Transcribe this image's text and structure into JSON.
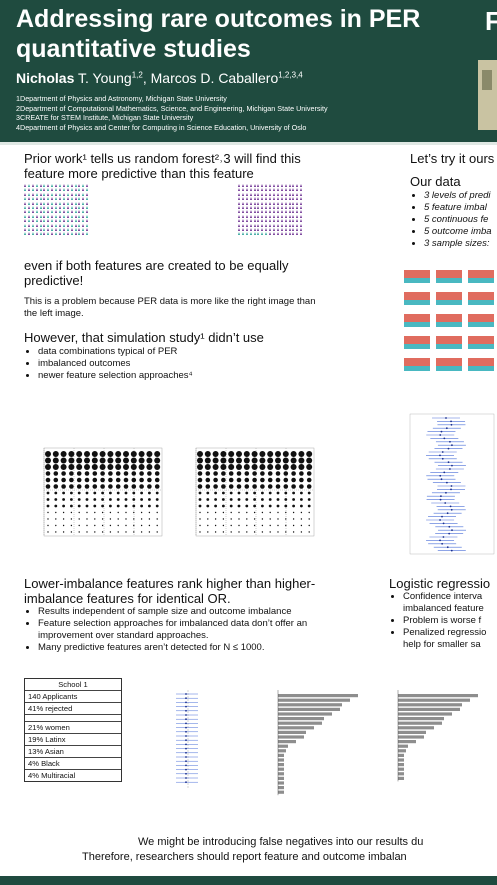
{
  "header": {
    "title": "Addressing rare outcomes in PER quantitative studies",
    "author1": "Nicholas",
    "author1_last": " T. Young",
    "author1_sup": "1,2",
    "author_sep": ", ",
    "author2": "Marcos D. Caballero",
    "author2_sup": "1,2,3,4",
    "affiliations": [
      "1Department of Physics and Astronomy, Michigan State University",
      "2Department of Computational Mathematics, Science, and Engineering, Michigan State University",
      "3CREATE for STEM Institute, Michigan State University",
      "4Department of Physics and Center for Computing in Science Education, University of Oslo"
    ],
    "logo_letter": "F"
  },
  "left": {
    "prior_work": "Prior work¹ tells us random forest²˒3 will find this feature more predictive than this feature",
    "even_if": "even if both features are created to be equally predictive!",
    "problem": "This is a problem because PER data is more like the right image than the left image.",
    "however": "However, that simulation study¹ didn’t use",
    "however_bullets": [
      "data combinations typical of PER",
      "imbalanced outcomes",
      "newer feature selection approaches⁴"
    ],
    "results_heading": "Lower-imbalance features rank higher than higher-imbalance features for identical OR.",
    "results_bullets": [
      "Results independent of sample size and outcome imbalance",
      "Feature selection approaches for imbalanced data don’t offer an improvement over standard approaches.",
      "Many predictive features aren’t detected for N ≤ 1000."
    ]
  },
  "right": {
    "lets_try": "Let’s try it ours",
    "our_data": "Our data",
    "data_bullets": [
      "3 levels of predi",
      "5 feature imbal",
      "5 continuous fe",
      "5 outcome imba",
      "3 sample sizes:"
    ],
    "logistic_heading": "Logistic regressio",
    "logistic_bullets": [
      "Confidence interva imbalanced feature",
      "Problem is worse f",
      "Penalized regressio help for smaller sa"
    ]
  },
  "school_table": {
    "title": "School 1",
    "rows": [
      "140 Applicants",
      "41% rejected"
    ],
    "demo": [
      "21% women",
      "19% Latinx",
      "13% Asian",
      "4% Black",
      "4% Multiracial"
    ]
  },
  "footer": {
    "line1": "We might be introducing false negatives into our results du",
    "line2": "Therefore, researchers should report feature and outcome imbalan"
  }
}
